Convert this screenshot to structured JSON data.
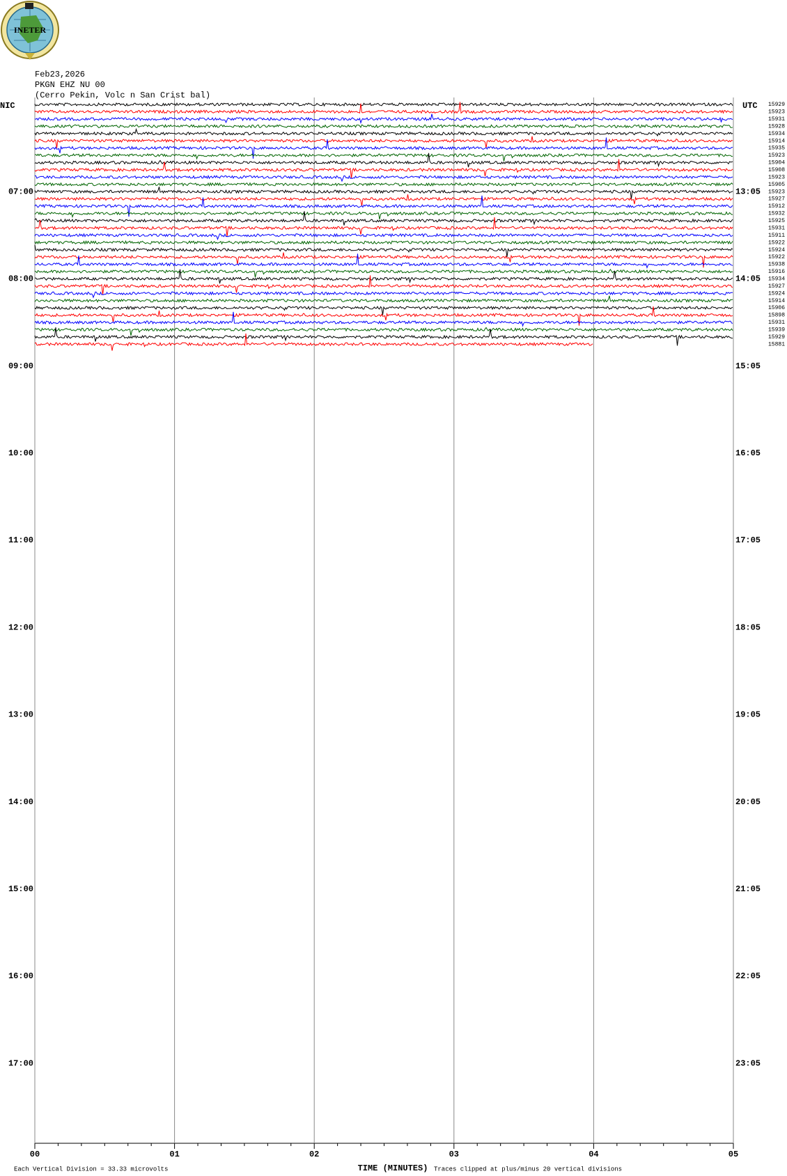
{
  "header": {
    "logo_text": "INETER",
    "date": "Feb23,2026",
    "station": "PKGN EHZ NU 00",
    "location": "(Cerro Pekin, Volc n San Crist bal)"
  },
  "chart_data": {
    "type": "helicorder",
    "left_axis_title": "NIC",
    "right_axis_title": "UTC",
    "traces": [
      {
        "color": "#000000",
        "count": 15929
      },
      {
        "color": "#ff0000",
        "count": 15923
      },
      {
        "color": "#0000ff",
        "count": 15931
      },
      {
        "color": "#006400",
        "count": 15928
      },
      {
        "color": "#000000",
        "count": 15934
      },
      {
        "color": "#ff0000",
        "count": 15914
      },
      {
        "color": "#0000ff",
        "count": 15935
      },
      {
        "color": "#006400",
        "count": 15923
      },
      {
        "color": "#000000",
        "count": 15904
      },
      {
        "color": "#ff0000",
        "count": 15908
      },
      {
        "color": "#0000ff",
        "count": 15923
      },
      {
        "color": "#006400",
        "count": 15905
      },
      {
        "color": "#000000",
        "count": 15923
      },
      {
        "color": "#ff0000",
        "count": 15927
      },
      {
        "color": "#0000ff",
        "count": 15912
      },
      {
        "color": "#006400",
        "count": 15932
      },
      {
        "color": "#000000",
        "count": 15925
      },
      {
        "color": "#ff0000",
        "count": 15931
      },
      {
        "color": "#0000ff",
        "count": 15911
      },
      {
        "color": "#006400",
        "count": 15922
      },
      {
        "color": "#000000",
        "count": 15924
      },
      {
        "color": "#ff0000",
        "count": 15922
      },
      {
        "color": "#0000ff",
        "count": 15938
      },
      {
        "color": "#006400",
        "count": 15916
      },
      {
        "color": "#000000",
        "count": 15934
      },
      {
        "color": "#ff0000",
        "count": 15927
      },
      {
        "color": "#0000ff",
        "count": 15924
      },
      {
        "color": "#006400",
        "count": 15914
      },
      {
        "color": "#000000",
        "count": 15906
      },
      {
        "color": "#ff0000",
        "count": 15898
      },
      {
        "color": "#0000ff",
        "count": 15931
      },
      {
        "color": "#006400",
        "count": 15939
      },
      {
        "color": "#000000",
        "count": 15929
      },
      {
        "color": "#ff0000",
        "count": 15881
      }
    ],
    "local_hours": [
      "07:00",
      "08:00",
      "09:00",
      "10:00",
      "11:00",
      "12:00",
      "13:00",
      "14:00",
      "15:00",
      "16:00",
      "17:00"
    ],
    "utc_hours": [
      "13:05",
      "14:05",
      "15:05",
      "16:05",
      "17:05",
      "18:05",
      "19:05",
      "20:05",
      "21:05",
      "22:05",
      "23:05"
    ],
    "xlim": [
      0,
      5
    ],
    "xticks": [
      {
        "value": 0,
        "label": "00"
      },
      {
        "value": 1,
        "label": "01"
      },
      {
        "value": 2,
        "label": "02"
      },
      {
        "value": 3,
        "label": "03"
      },
      {
        "value": 4,
        "label": "04"
      },
      {
        "value": 5,
        "label": "05"
      }
    ],
    "x_label": "TIME (MINUTES)",
    "data_end_minutes": 4,
    "footnote_left": "Each Vertical Division =   33.33 microvolts",
    "footnote_right": "Traces clipped at plus/minus 20 vertical divisions"
  }
}
